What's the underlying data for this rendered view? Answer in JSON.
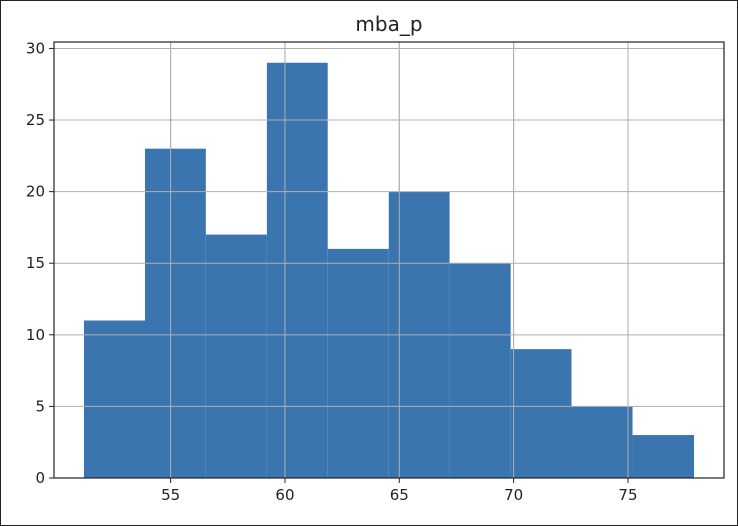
{
  "chart_data": {
    "type": "bar",
    "title": "mba_p",
    "xlabel": "",
    "ylabel": "",
    "bins": [
      {
        "start": 51.21,
        "end": 53.88,
        "value": 11
      },
      {
        "start": 53.88,
        "end": 56.54,
        "value": 23
      },
      {
        "start": 56.54,
        "end": 59.21,
        "value": 17
      },
      {
        "start": 59.21,
        "end": 61.87,
        "value": 29
      },
      {
        "start": 61.87,
        "end": 64.54,
        "value": 16
      },
      {
        "start": 64.54,
        "end": 67.2,
        "value": 20
      },
      {
        "start": 67.2,
        "end": 69.87,
        "value": 15
      },
      {
        "start": 69.87,
        "end": 72.53,
        "value": 9
      },
      {
        "start": 72.53,
        "end": 75.2,
        "value": 5
      },
      {
        "start": 75.2,
        "end": 77.89,
        "value": 3
      }
    ],
    "xlim": [
      49.9,
      79.2
    ],
    "ylim": [
      0,
      30.45
    ],
    "x_ticks": [
      55,
      60,
      65,
      70,
      75
    ],
    "y_ticks": [
      0,
      5,
      10,
      15,
      20,
      25,
      30
    ],
    "grid": true,
    "bar_color": "#3b75af",
    "grid_color": "#b0b0b0"
  }
}
